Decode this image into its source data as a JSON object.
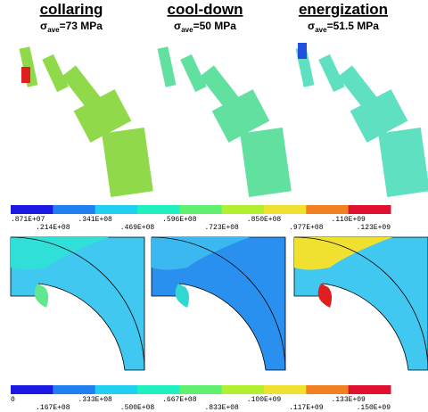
{
  "panels": [
    {
      "title": "collaring",
      "stress": {
        "symbol": "σ",
        "sub": "ave",
        "rest": "=73 MPa"
      }
    },
    {
      "title": "cool-down",
      "stress": {
        "symbol": "σ",
        "sub": "ave",
        "rest": "=50 MPa"
      }
    },
    {
      "title": "energization",
      "stress": {
        "symbol": "σ",
        "sub": "ave",
        "rest": "=51.5 MPa"
      }
    }
  ],
  "colorbars": [
    {
      "labels": [
        ".871E+07",
        ".214E+08",
        ".341E+08",
        ".469E+08",
        ".596E+08",
        ".723E+08",
        ".850E+08",
        ".977E+08",
        ".110E+09",
        ".123E+09"
      ]
    },
    {
      "labels": [
        "0",
        ".167E+08",
        ".333E+08",
        ".500E+08",
        ".667E+08",
        ".833E+08",
        ".100E+09",
        ".117E+09",
        ".133E+09",
        ".150E+09"
      ]
    }
  ]
}
